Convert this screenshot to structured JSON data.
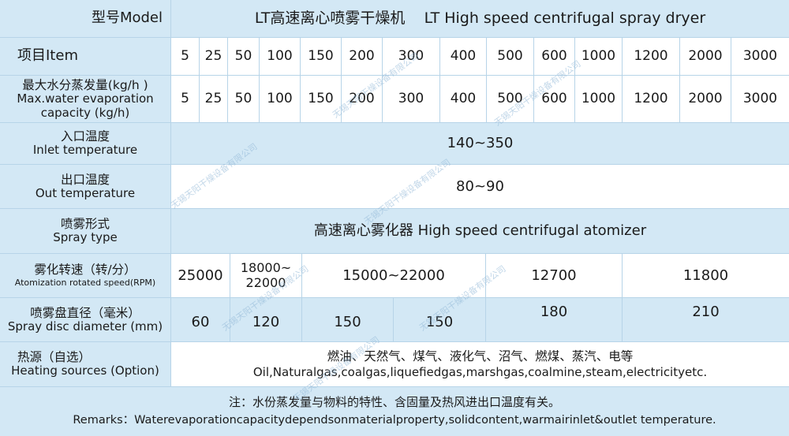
{
  "header": {
    "model_label": "型号Model",
    "item_label": "项目Item",
    "title": "LT高速离心喷雾干燥机    LT High speed centrifugal spray dryer",
    "models": [
      "5",
      "25",
      "50",
      "100",
      "150",
      "200",
      "300",
      "400",
      "500",
      "600",
      "1000",
      "1200",
      "2000",
      "3000"
    ]
  },
  "rows": {
    "evaporation": {
      "label_zh": "最大水分蒸发量(kg/h )",
      "label_en": "Max.water evaporation capacity (kg/h)",
      "values": [
        "5",
        "25",
        "50",
        "100",
        "150",
        "200",
        "300",
        "400",
        "500",
        "600",
        "1000",
        "1200",
        "2000",
        "3000"
      ]
    },
    "inlet": {
      "label_zh": "入口温度",
      "label_en": "Inlet temperature",
      "value": "140~350"
    },
    "outlet": {
      "label_zh": "出口温度",
      "label_en": "Out temperature",
      "value": "80~90"
    },
    "spray_type": {
      "label_zh": "喷雾形式",
      "label_en": "Spray type",
      "value": "高速离心雾化器 High speed centrifugal atomizer"
    },
    "rpm": {
      "label_zh": "雾化转速（转/分）",
      "label_en": "Atomization rotated speed(RPM)",
      "values": [
        "25000",
        "18000~22000",
        "15000~22000",
        "12700",
        "11800"
      ]
    },
    "disc": {
      "label_zh": "喷雾盘直径（毫米）",
      "label_en": "Spray disc diameter (mm)",
      "values": [
        "60",
        "120",
        "150",
        "150",
        "180",
        "210"
      ]
    },
    "heating": {
      "label_zh": "热源（自选）",
      "label_en": "Heating sources (Option)",
      "value_zh": "燃油、天然气、煤气、液化气、沼气、燃煤、蒸汽、电等",
      "value_en": "Oil,Naturalgas,coalgas,liquefiedgas,marshgas,coalmine,steam,electricityetc."
    }
  },
  "remarks": {
    "zh": "注：水份蒸发量与物料的特性、含固量及热风进出口温度有关。",
    "en": "Remarks：Waterevaporationcapacitydependsonmaterialproperty,solidcontent,warmairinlet&outlet temperature."
  },
  "watermark": "无锡天阳干燥设备有限公司",
  "colors": {
    "header_blue": "#d3e8f5",
    "row_white": "#ffffff",
    "divider": "#b7d4e8"
  }
}
